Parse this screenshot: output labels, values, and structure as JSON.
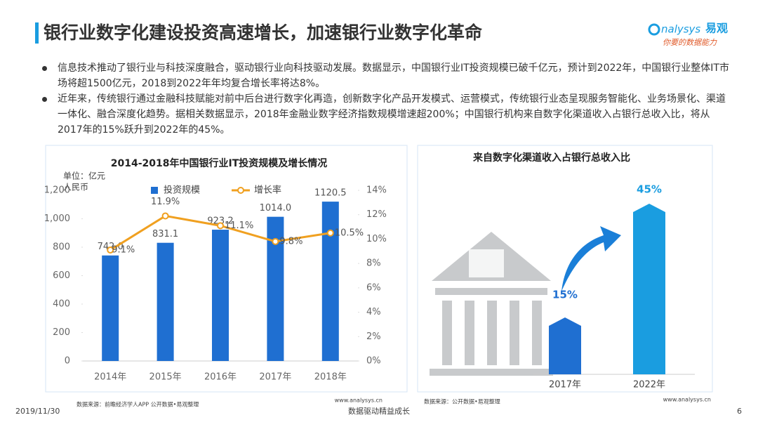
{
  "header": {
    "title": "银行业数字化建设投资高速增长，加速银行业数字化革命"
  },
  "logo": {
    "brand": "nalysys",
    "cn": "易观",
    "slogan": "你要的数据能力"
  },
  "bullets": [
    "信息技术推动了银行业与科技深度融合，驱动银行业向科技驱动发展。数据显示，中国银行业IT投资规模已破千亿元，预计到2022年，中国银行业整体IT市场将超1500亿元，2018到2022年年均复合增长率将达8%。",
    "近年来，传统银行通过金融科技赋能对前中后台进行数字化再造，创新数字化产品开发模式、运营模式，传统银行业态呈现服务智能化、业务场景化、渠道一体化、融合深度化趋势。据相关数据显示，2018年金融业数字经济指数规模增速超200%；中国银行机构来自数字化渠道收入占银行总收入比，将从2017年的15%跃升到2022年的45%。"
  ],
  "chart_data": [
    {
      "type": "bar",
      "title": "2014-2018年中国银行业IT投资规模及增长情况",
      "unit_lines": [
        "单位：亿元",
        "人民币"
      ],
      "categories": [
        "2014年",
        "2015年",
        "2016年",
        "2017年",
        "2018年"
      ],
      "series": [
        {
          "name": "投资规模",
          "color": "#1f6fd1",
          "values": [
            742.0,
            831.1,
            923.2,
            1014.0,
            1120.5
          ],
          "value_labels": [
            "742.0",
            "831.1",
            "923.2",
            "1014.0",
            "1120.5"
          ]
        },
        {
          "name": "增长率",
          "type": "line",
          "axis": "y2",
          "color": "#f0a020",
          "values": [
            9.1,
            11.9,
            11.1,
            9.8,
            10.5
          ],
          "value_labels": [
            "9.1%",
            "11.9%",
            "11.1%",
            "9.8%",
            "10.5%"
          ]
        }
      ],
      "ylim": [
        0,
        1200
      ],
      "yticks": [
        0,
        200,
        400,
        600,
        800,
        {
          "value": 1000,
          "label": "1,000"
        },
        {
          "value": 1200,
          "label": "1,200"
        }
      ],
      "y2lim": [
        0,
        14
      ],
      "y2ticks": [
        {
          "value": 0,
          "label": "0%"
        },
        {
          "value": 2,
          "label": "2%"
        },
        {
          "value": 4,
          "label": "4%"
        },
        {
          "value": 6,
          "label": "6%"
        },
        {
          "value": 8,
          "label": "8%"
        },
        {
          "value": 10,
          "label": "10%"
        },
        {
          "value": 12,
          "label": "12%"
        },
        {
          "value": 14,
          "label": "14%"
        }
      ],
      "source": "数据来源：前瞻经济学人APP 公开数据•易观整理",
      "site": "www.analysys.cn"
    },
    {
      "type": "bar",
      "title": "来自数字化渠道收入占银行总收入比",
      "categories": [
        "2017年",
        "2022年"
      ],
      "values": [
        15,
        45
      ],
      "value_labels": [
        "15%",
        "45%"
      ],
      "colors": [
        "#1f6fd1",
        "#1a9de0"
      ],
      "source": "数据来源：公开数据•易观整理",
      "site": "www.analysys.cn"
    }
  ],
  "footer": {
    "date": "2019/11/30",
    "slogan": "数据驱动精益成长",
    "page": "6"
  }
}
